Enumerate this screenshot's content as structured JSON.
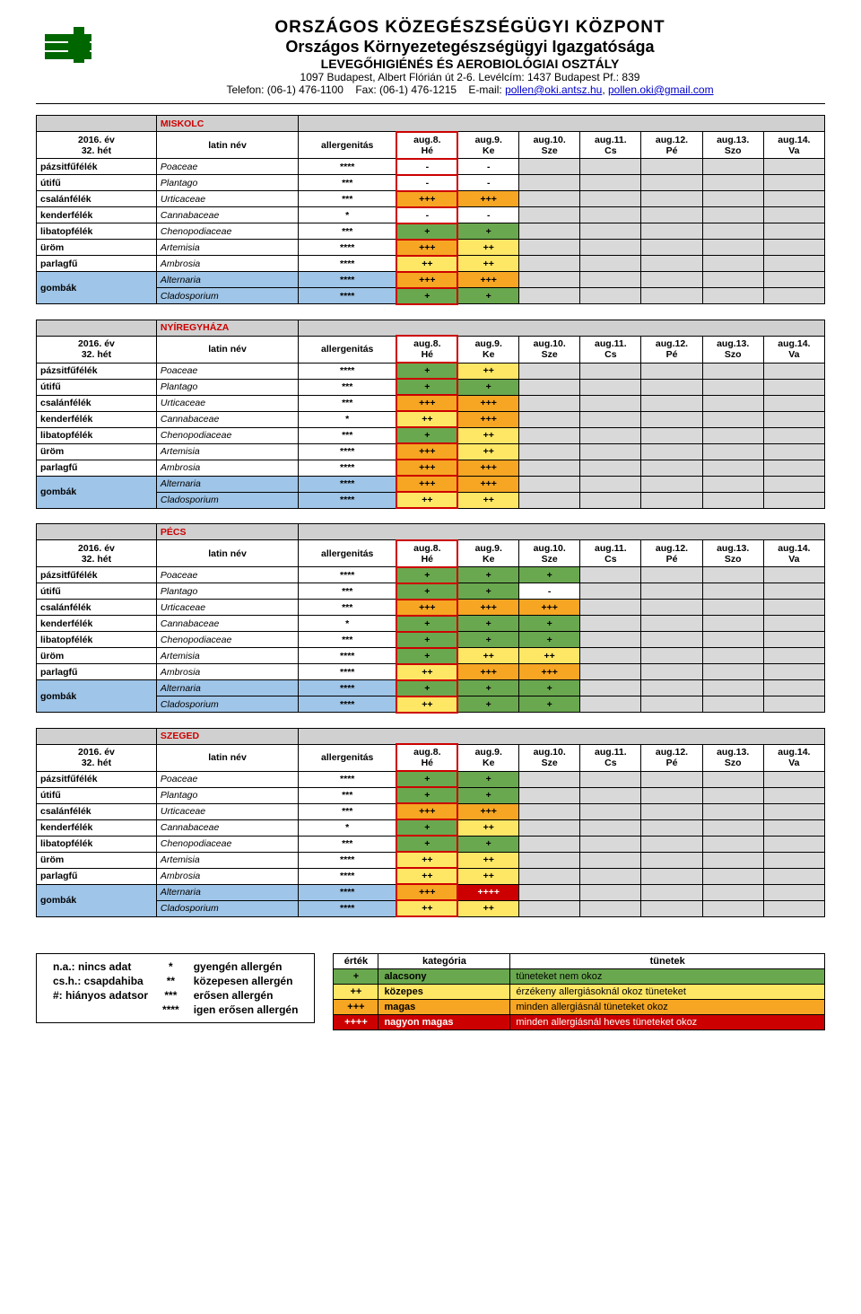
{
  "header": {
    "org1": "ORSZÁGOS KÖZEGÉSZSÉGÜGYI KÖZPONT",
    "org2": "Országos Környezetegészségügyi Igazgatósága",
    "org3": "LEVEGŐHIGIÉNÉS ÉS AEROBIOLÓGIAI OSZTÁLY",
    "addr": "1097 Budapest, Albert Flórián út 2-6.  Levélcím: 1437 Budapest Pf.: 839",
    "tel": "Telefon: (06-1) 476-1100",
    "fax": "Fax: (06-1) 476-1215",
    "email_label": "E-mail:",
    "email1": "pollen@oki.antsz.hu",
    "email2": "pollen.oki@gmail.com"
  },
  "period": {
    "year": "2016. év",
    "week": "32. hét"
  },
  "col_headers": {
    "latin": "latin név",
    "allerg": "allergenitás",
    "days": [
      {
        "d": "aug.8.",
        "w": "Hé"
      },
      {
        "d": "aug.9.",
        "w": "Ke"
      },
      {
        "d": "aug.10.",
        "w": "Sze"
      },
      {
        "d": "aug.11.",
        "w": "Cs"
      },
      {
        "d": "aug.12.",
        "w": "Pé"
      },
      {
        "d": "aug.13.",
        "w": "Szo"
      },
      {
        "d": "aug.14.",
        "w": "Va"
      }
    ]
  },
  "colors": {
    "none": "#ffffff",
    "green": "#6aa84f",
    "yellow": "#ffe766",
    "orange": "#f6a623",
    "darkorange": "#e69138",
    "red": "#cc0000",
    "grey": "#d9d9d9",
    "blue": "#9fc5e8",
    "cityband": "#d0d0d0"
  },
  "allergens": [
    {
      "hu": "pázsitfűfélék",
      "la": "Poaceae",
      "a": "****"
    },
    {
      "hu": "útifű",
      "la": "Plantago",
      "a": "***"
    },
    {
      "hu": "csalánfélék",
      "la": "Urticaceae",
      "a": "***"
    },
    {
      "hu": "kenderfélék",
      "la": "Cannabaceae",
      "a": "*"
    },
    {
      "hu": "libatopfélék",
      "la": "Chenopodiaceae",
      "a": "***"
    },
    {
      "hu": "üröm",
      "la": "Artemisia",
      "a": "****"
    },
    {
      "hu": "parlagfű",
      "la": "Ambrosia",
      "a": "****"
    },
    {
      "hu": "gombák",
      "la": "Alternaria",
      "a": "****",
      "grp": 1
    },
    {
      "hu": "",
      "la": "Cladosporium",
      "a": "****",
      "grp": 1
    }
  ],
  "stations": [
    {
      "name": "MISKOLC",
      "rows": [
        [
          {
            "v": "-",
            "c": "none"
          },
          {
            "v": "-",
            "c": "none"
          }
        ],
        [
          {
            "v": "-",
            "c": "none"
          },
          {
            "v": "-",
            "c": "none"
          }
        ],
        [
          {
            "v": "+++",
            "c": "orange"
          },
          {
            "v": "+++",
            "c": "orange"
          }
        ],
        [
          {
            "v": "-",
            "c": "none"
          },
          {
            "v": "-",
            "c": "none"
          }
        ],
        [
          {
            "v": "+",
            "c": "green"
          },
          {
            "v": "+",
            "c": "green"
          }
        ],
        [
          {
            "v": "+++",
            "c": "orange"
          },
          {
            "v": "++",
            "c": "yellow"
          }
        ],
        [
          {
            "v": "++",
            "c": "yellow"
          },
          {
            "v": "++",
            "c": "yellow"
          }
        ],
        [
          {
            "v": "+++",
            "c": "orange"
          },
          {
            "v": "+++",
            "c": "orange"
          }
        ],
        [
          {
            "v": "+",
            "c": "green"
          },
          {
            "v": "+",
            "c": "green"
          }
        ]
      ]
    },
    {
      "name": "NYÍREGYHÁZA",
      "rows": [
        [
          {
            "v": "+",
            "c": "green"
          },
          {
            "v": "++",
            "c": "yellow"
          }
        ],
        [
          {
            "v": "+",
            "c": "green"
          },
          {
            "v": "+",
            "c": "green"
          }
        ],
        [
          {
            "v": "+++",
            "c": "orange"
          },
          {
            "v": "+++",
            "c": "orange"
          }
        ],
        [
          {
            "v": "++",
            "c": "yellow"
          },
          {
            "v": "+++",
            "c": "orange"
          }
        ],
        [
          {
            "v": "+",
            "c": "green"
          },
          {
            "v": "++",
            "c": "yellow"
          }
        ],
        [
          {
            "v": "+++",
            "c": "orange"
          },
          {
            "v": "++",
            "c": "yellow"
          }
        ],
        [
          {
            "v": "+++",
            "c": "orange"
          },
          {
            "v": "+++",
            "c": "orange"
          }
        ],
        [
          {
            "v": "+++",
            "c": "orange"
          },
          {
            "v": "+++",
            "c": "orange"
          }
        ],
        [
          {
            "v": "++",
            "c": "yellow"
          },
          {
            "v": "++",
            "c": "yellow"
          }
        ]
      ]
    },
    {
      "name": "PÉCS",
      "rows": [
        [
          {
            "v": "+",
            "c": "green"
          },
          {
            "v": "+",
            "c": "green"
          },
          {
            "v": "+",
            "c": "green"
          }
        ],
        [
          {
            "v": "+",
            "c": "green"
          },
          {
            "v": "+",
            "c": "green"
          },
          {
            "v": "-",
            "c": "none"
          }
        ],
        [
          {
            "v": "+++",
            "c": "orange"
          },
          {
            "v": "+++",
            "c": "orange"
          },
          {
            "v": "+++",
            "c": "orange"
          }
        ],
        [
          {
            "v": "+",
            "c": "green"
          },
          {
            "v": "+",
            "c": "green"
          },
          {
            "v": "+",
            "c": "green"
          }
        ],
        [
          {
            "v": "+",
            "c": "green"
          },
          {
            "v": "+",
            "c": "green"
          },
          {
            "v": "+",
            "c": "green"
          }
        ],
        [
          {
            "v": "+",
            "c": "green"
          },
          {
            "v": "++",
            "c": "yellow"
          },
          {
            "v": "++",
            "c": "yellow"
          }
        ],
        [
          {
            "v": "++",
            "c": "yellow"
          },
          {
            "v": "+++",
            "c": "orange"
          },
          {
            "v": "+++",
            "c": "orange"
          }
        ],
        [
          {
            "v": "+",
            "c": "green"
          },
          {
            "v": "+",
            "c": "green"
          },
          {
            "v": "+",
            "c": "green"
          }
        ],
        [
          {
            "v": "++",
            "c": "yellow"
          },
          {
            "v": "+",
            "c": "green"
          },
          {
            "v": "+",
            "c": "green"
          }
        ]
      ]
    },
    {
      "name": "SZEGED",
      "rows": [
        [
          {
            "v": "+",
            "c": "green"
          },
          {
            "v": "+",
            "c": "green"
          }
        ],
        [
          {
            "v": "+",
            "c": "green"
          },
          {
            "v": "+",
            "c": "green"
          }
        ],
        [
          {
            "v": "+++",
            "c": "orange"
          },
          {
            "v": "+++",
            "c": "orange"
          }
        ],
        [
          {
            "v": "+",
            "c": "green"
          },
          {
            "v": "++",
            "c": "yellow"
          }
        ],
        [
          {
            "v": "+",
            "c": "green"
          },
          {
            "v": "+",
            "c": "green"
          }
        ],
        [
          {
            "v": "++",
            "c": "yellow"
          },
          {
            "v": "++",
            "c": "yellow"
          }
        ],
        [
          {
            "v": "++",
            "c": "yellow"
          },
          {
            "v": "++",
            "c": "yellow"
          }
        ],
        [
          {
            "v": "+++",
            "c": "orange"
          },
          {
            "v": "++++",
            "c": "red"
          }
        ],
        [
          {
            "v": "++",
            "c": "yellow"
          },
          {
            "v": "++",
            "c": "yellow"
          }
        ]
      ]
    }
  ],
  "legend_left": [
    {
      "abbr": "n.a.: nincs adat",
      "stars": "*",
      "txt": "gyengén allergén"
    },
    {
      "abbr": "cs.h.: csapdahiba",
      "stars": "**",
      "txt": "közepesen allergén"
    },
    {
      "abbr": "#: hiányos adatsor",
      "stars": "***",
      "txt": "erősen allergén"
    },
    {
      "abbr": "",
      "stars": "****",
      "txt": "igen erősen allergén"
    }
  ],
  "legend_right": {
    "hdr": [
      "érték",
      "kategória",
      "tünetek"
    ],
    "rows": [
      {
        "sym": "+",
        "c": "green",
        "cat": "alacsony",
        "txt": "tüneteket nem okoz"
      },
      {
        "sym": "++",
        "c": "yellow",
        "cat": "közepes",
        "txt": "érzékeny allergiásoknál okoz tüneteket"
      },
      {
        "sym": "+++",
        "c": "orange",
        "cat": "magas",
        "txt": "minden allergiásnál tüneteket okoz"
      },
      {
        "sym": "++++",
        "c": "red",
        "cat": "nagyon magas",
        "txt": "minden allergiásnál heves tüneteket okoz"
      }
    ]
  }
}
